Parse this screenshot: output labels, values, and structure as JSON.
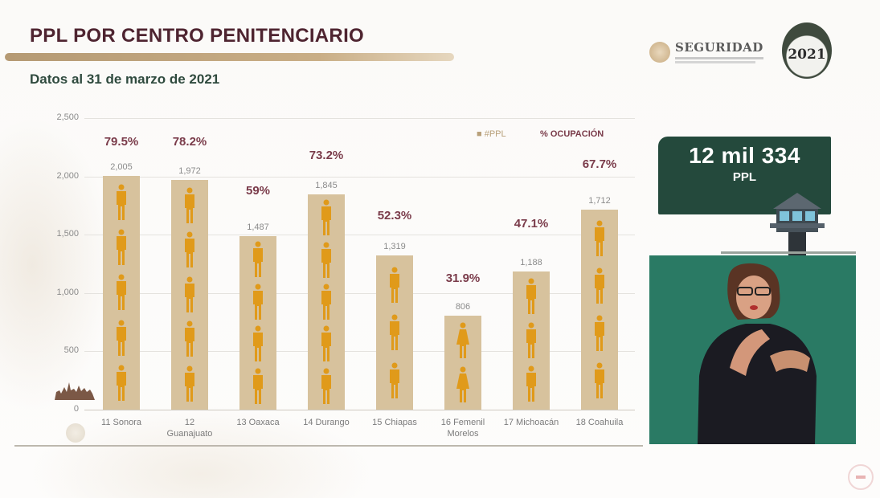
{
  "header": {
    "title": "PPL POR CENTRO PENITENCIARIO",
    "subtitle": "Datos al 31 de marzo de 2021",
    "logo_text": "SEGURIDAD",
    "badge_text": "2021"
  },
  "legend": {
    "ppl": "■ #PPL",
    "ocupacion": "% OCUPACIÓN"
  },
  "summary": {
    "total_value": "12 mil 334",
    "total_unit": "PPL"
  },
  "colors": {
    "bar": "#d7c29d",
    "person_icon": "#e09a1a",
    "percent_text": "#7a3b4a",
    "title": "#4e2430",
    "summary_box": "#24493c",
    "video_bg": "#2a7a64"
  },
  "chart_data": {
    "type": "bar",
    "title": "PPL POR CENTRO PENITENCIARIO",
    "subtitle": "Datos al 31 de marzo de 2021",
    "xlabel": "",
    "ylabel": "",
    "ylim": [
      0,
      2500
    ],
    "yticks": [
      "0",
      "500",
      "1,000",
      "1,500",
      "2,000",
      "2,500"
    ],
    "grid": true,
    "legend_position": "top-right",
    "categories": [
      "11 Sonora",
      "12 Guanajuato",
      "13 Oaxaca",
      "14 Durango",
      "15 Chiapas",
      "16 Femenil Morelos",
      "17 Michoacán",
      "18 Coahuila"
    ],
    "series": [
      {
        "name": "#PPL",
        "values": [
          2005,
          1972,
          1487,
          1845,
          1319,
          806,
          1188,
          1712
        ],
        "labels": [
          "2,005",
          "1,972",
          "1,487",
          "1,845",
          "1,319",
          "806",
          "1,188",
          "1,712"
        ]
      },
      {
        "name": "% OCUPACIÓN",
        "values": [
          79.5,
          78.2,
          59,
          73.2,
          52.3,
          31.9,
          47.1,
          67.7
        ],
        "labels": [
          "79.5%",
          "78.2%",
          "59%",
          "73.2%",
          "52.3%",
          "31.9%",
          "47.1%",
          "67.7%"
        ]
      }
    ],
    "icons": [
      "male",
      "male",
      "male",
      "male",
      "male",
      "female",
      "male",
      "male"
    ],
    "annotation": "12 mil 334 PPL"
  }
}
